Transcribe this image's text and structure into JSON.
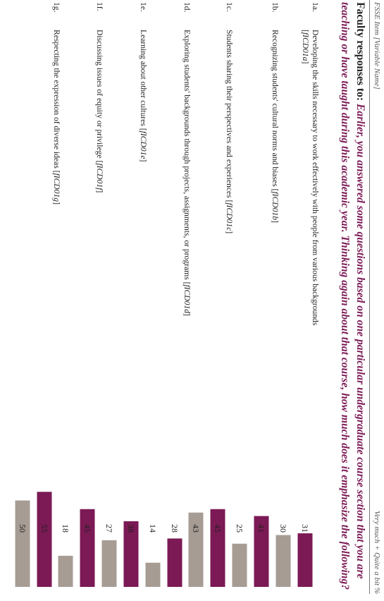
{
  "header": {
    "left_label": "FSSE Item [Variable Name]",
    "right_label": "Very much + Quite a bit %"
  },
  "question": {
    "lead": "Faculty responses to:",
    "text": "Earlier, you answered some questions based on one particular undergraduate course section that you are teaching or have taught during this academic year. Thinking again about that course, how much does it emphasize the following?"
  },
  "items": [
    {
      "id": "1a.",
      "text": "Developing the skills necessary to work effectively with people from various backgrounds",
      "variable": "fICD01a"
    },
    {
      "id": "1b.",
      "text": "Recognizing students' cultural norms and biases",
      "variable": "fICD01b"
    },
    {
      "id": "1c.",
      "text": "Students sharing their perspectives and experiences",
      "variable": "fICD01c"
    },
    {
      "id": "1d.",
      "text": "Exploring students' backgrounds through projects, assignments, or programs",
      "variable": "fICD01d"
    },
    {
      "id": "1e.",
      "text": "Learning about other cultures",
      "variable": "fICD01e"
    },
    {
      "id": "1f.",
      "text": "Discussing issues of equity or privilege",
      "variable": "fICD01f"
    },
    {
      "id": "1g.",
      "text": "Respecting the expression of diverse ideas",
      "variable": "fICD01g"
    }
  ],
  "colors": {
    "series_a": "#7b1a55",
    "series_b": "#a69c94",
    "emphasis": "#7b1a55"
  },
  "chart_data": {
    "type": "bar",
    "categories": [
      "1a.",
      "1b.",
      "1c.",
      "1d.",
      "1e.",
      "1f.",
      "1g."
    ],
    "series": [
      {
        "values": [
          31,
          41,
          45,
          28,
          38,
          45,
          55
        ],
        "color": "#7b1a55"
      },
      {
        "values": [
          30,
          25,
          43,
          14,
          27,
          18,
          50
        ],
        "color": "#a69c94"
      }
    ],
    "ylim": [
      0,
      60
    ],
    "grid": false,
    "legend": "none"
  }
}
